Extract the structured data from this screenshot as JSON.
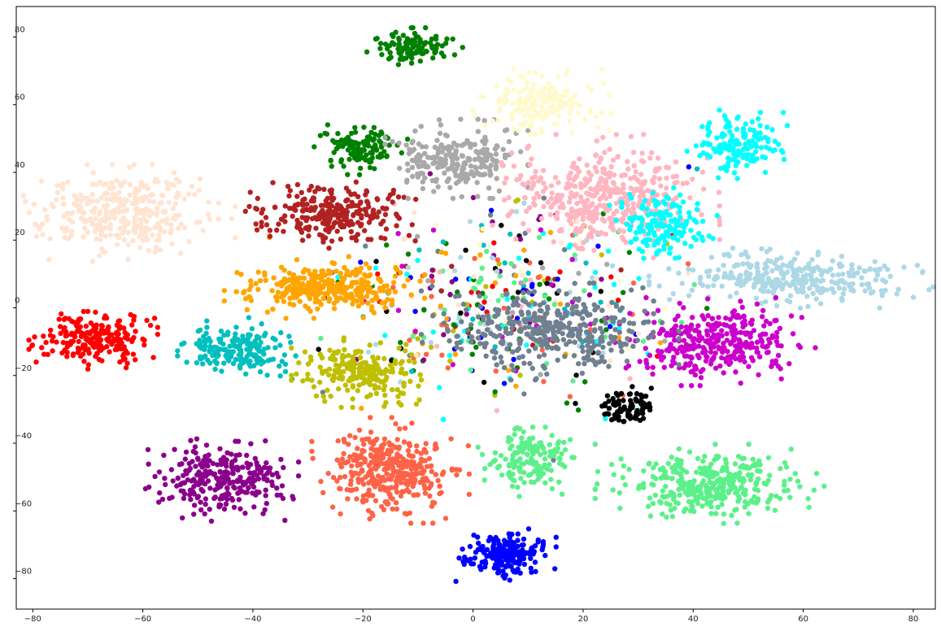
{
  "chart_data": {
    "type": "scatter",
    "title": "",
    "xlabel": "",
    "ylabel": "",
    "xlim": [
      -83,
      84
    ],
    "ylim": [
      -89,
      89
    ],
    "x_ticks": [
      -80,
      -60,
      -40,
      -20,
      0,
      20,
      40,
      60,
      80
    ],
    "x_tick_labels": [
      "−80",
      "−60",
      "−40",
      "−20",
      "0",
      "20",
      "40",
      "60",
      "80"
    ],
    "y_ticks": [
      -80,
      -60,
      -40,
      -20,
      0,
      20,
      40,
      60,
      80
    ],
    "y_tick_labels": [
      "−80",
      "−60",
      "−40",
      "−20",
      "0",
      "20",
      "40",
      "60",
      "80"
    ],
    "grid": false,
    "legend": "none",
    "clusters": [
      {
        "color": "#ff0000",
        "cx": -69,
        "cy": -9,
        "sx": 4.5,
        "sy": 3.5,
        "n": 220
      },
      {
        "color": "#00bfbf",
        "cx": -42,
        "cy": -12,
        "sx": 4.5,
        "sy": 3.5,
        "n": 180
      },
      {
        "color": "#8b008b",
        "cx": -46,
        "cy": -50,
        "sx": 5.5,
        "sy": 5,
        "n": 280
      },
      {
        "color": "#ffa500",
        "cx": -27,
        "cy": 6,
        "sx": 7,
        "sy": 3.5,
        "n": 320
      },
      {
        "color": "#bfbf00",
        "cx": -20,
        "cy": -19,
        "sx": 5,
        "sy": 4,
        "n": 220
      },
      {
        "color": "#b22222",
        "cx": -26,
        "cy": 28,
        "sx": 6,
        "sy": 4,
        "n": 260
      },
      {
        "color": "#008000",
        "cx": -20,
        "cy": 47,
        "sx": 3.5,
        "sy": 3,
        "n": 120
      },
      {
        "color": "#008000",
        "cx": -11,
        "cy": 77,
        "sx": 3.5,
        "sy": 2.2,
        "n": 110
      },
      {
        "color": "#ffe4d1",
        "cx": -64,
        "cy": 28,
        "sx": 8,
        "sy": 5.5,
        "n": 340
      },
      {
        "color": "#a9a9a9",
        "cx": -3,
        "cy": 44,
        "sx": 5,
        "sy": 4.5,
        "n": 240
      },
      {
        "color": "#fffacd",
        "cx": 12,
        "cy": 60,
        "sx": 5,
        "sy": 4,
        "n": 180
      },
      {
        "color": "#ffb6c1",
        "cx": 24,
        "cy": 33,
        "sx": 8,
        "sy": 7,
        "n": 420
      },
      {
        "color": "#00ffff",
        "cx": 48,
        "cy": 48,
        "sx": 3.5,
        "sy": 4,
        "n": 150
      },
      {
        "color": "#00ffff",
        "cx": 35,
        "cy": 24,
        "sx": 4,
        "sy": 4.5,
        "n": 160
      },
      {
        "color": "#add8e6",
        "cx": 58,
        "cy": 9,
        "sx": 10,
        "sy": 3.5,
        "n": 320
      },
      {
        "color": "#cc00cc",
        "cx": 44,
        "cy": -10,
        "sx": 7,
        "sy": 5,
        "n": 340
      },
      {
        "color": "#708090",
        "cx": 14,
        "cy": -7,
        "sx": 9,
        "sy": 5.5,
        "n": 360
      },
      {
        "color": "#000000",
        "cx": 28,
        "cy": -29,
        "sx": 2.5,
        "sy": 2.5,
        "n": 90
      },
      {
        "color": "#ff6347",
        "cx": -15,
        "cy": -48,
        "sx": 5.5,
        "sy": 6,
        "n": 360
      },
      {
        "color": "#5cf08a",
        "cx": 10,
        "cy": -44,
        "sx": 3.5,
        "sy": 4.5,
        "n": 150
      },
      {
        "color": "#5cf08a",
        "cx": 43,
        "cy": -52,
        "sx": 8,
        "sy": 4.5,
        "n": 340
      },
      {
        "color": "#0000ff",
        "cx": 6,
        "cy": -73,
        "sx": 3.5,
        "sy": 3,
        "n": 200
      }
    ],
    "noise_points": 500
  }
}
